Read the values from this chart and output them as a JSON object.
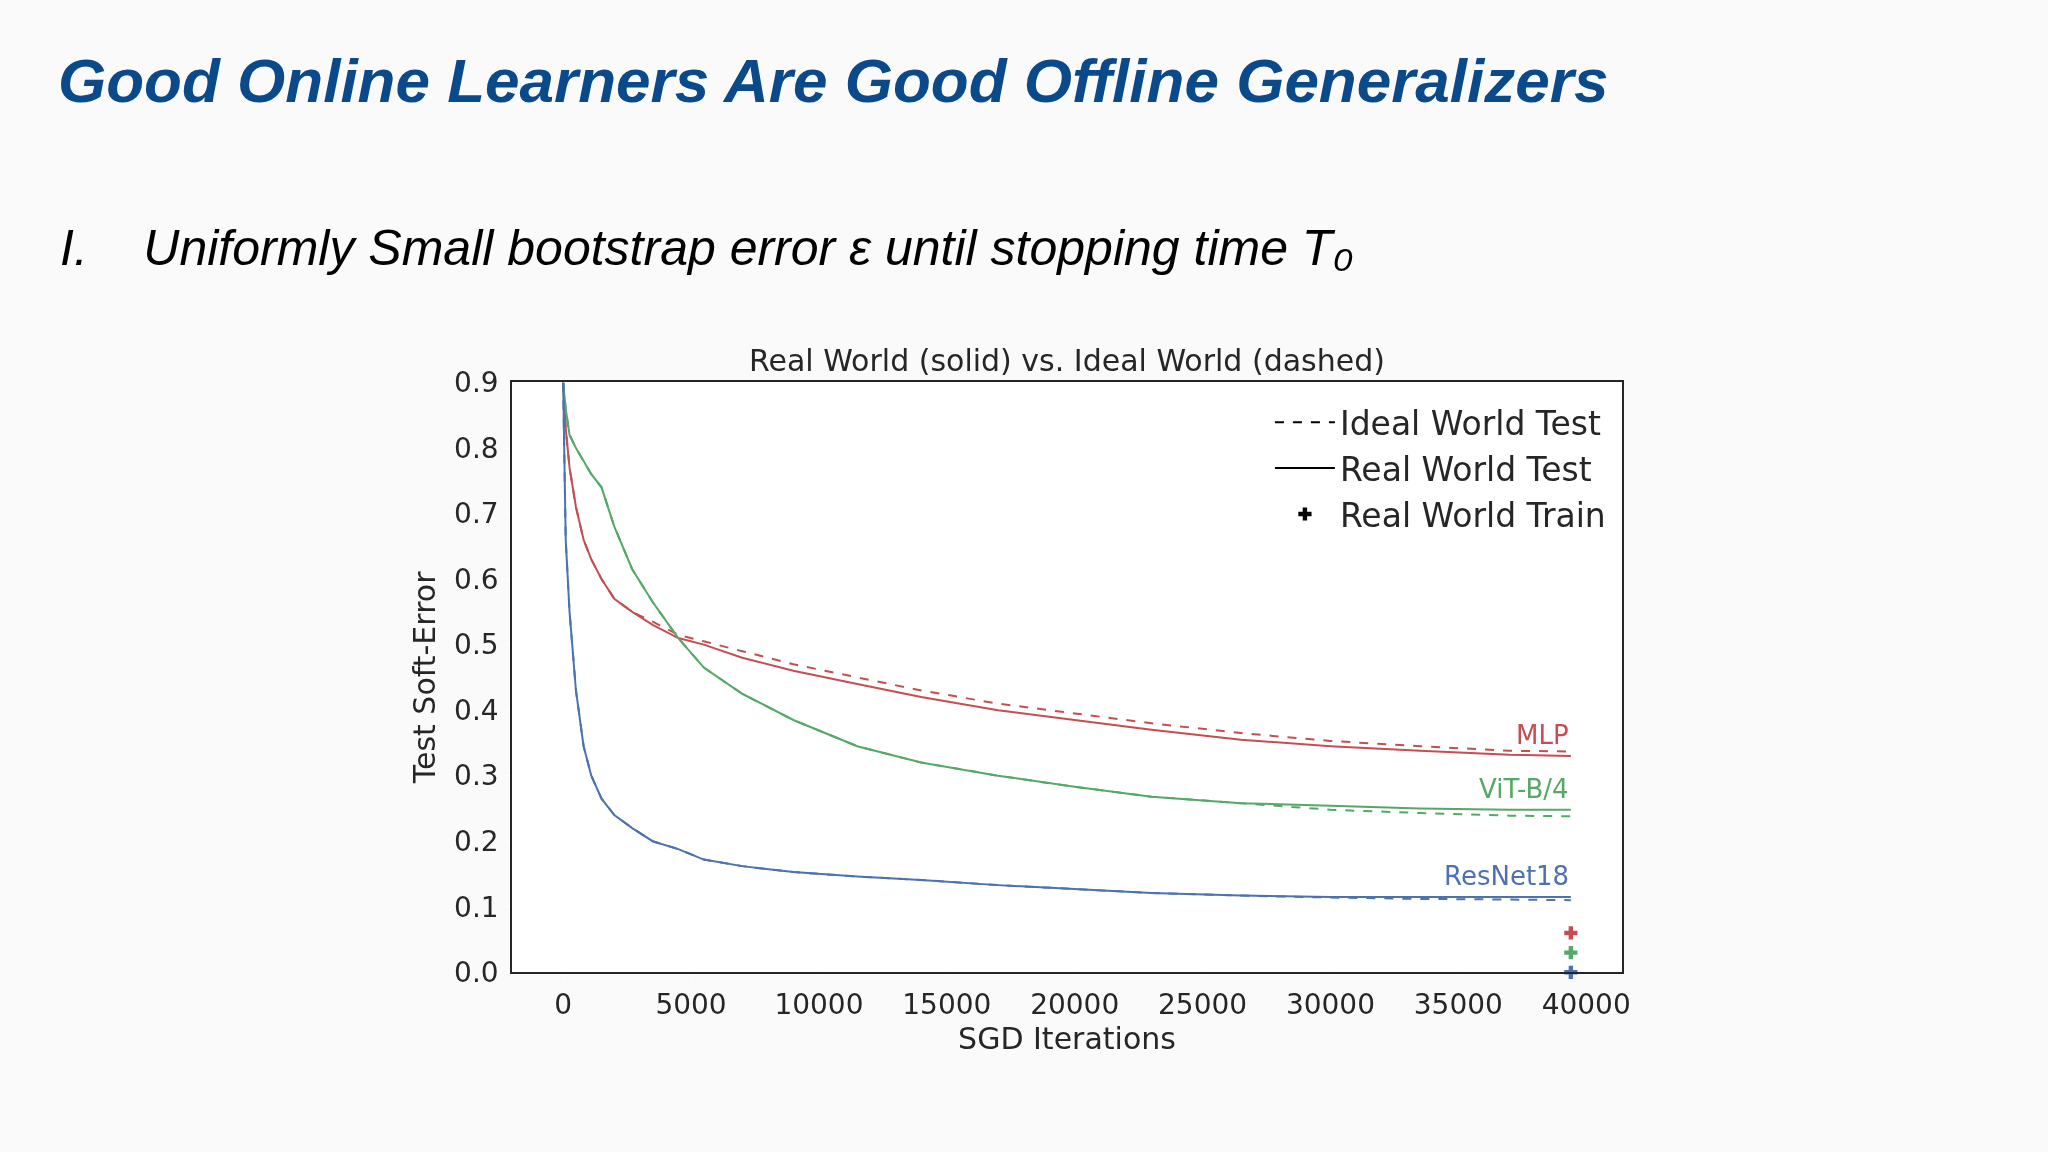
{
  "chart_data": {
    "type": "line",
    "title": "Good Online Learners Are Good Offline Generalizers",
    "subtitle": "I.    Uniformly Small bootstrap error ε until stopping time T₀",
    "xlabel": "SGD Iterations",
    "ylabel": "Test Soft-Error",
    "x": [
      0,
      100,
      250,
      500,
      800,
      1100,
      1500,
      2000,
      2700,
      3500,
      4500,
      5500,
      7000,
      9000,
      11500,
      14000,
      17000,
      20000,
      23000,
      26500,
      30000,
      33500,
      37000,
      39400
    ],
    "series": [
      {
        "color": "#c44e52",
        "line_style": "solid",
        "values": [
          0.9,
          0.83,
          0.77,
          0.71,
          0.66,
          0.63,
          0.6,
          0.57,
          0.55,
          0.53,
          0.51,
          0.5,
          0.48,
          0.46,
          0.44,
          0.42,
          0.4,
          0.385,
          0.37,
          0.355,
          0.345,
          0.338,
          0.332,
          0.33
        ]
      },
      {
        "color": "#c44e52",
        "line_style": "dashed",
        "values": [
          0.9,
          0.83,
          0.77,
          0.71,
          0.66,
          0.63,
          0.6,
          0.57,
          0.55,
          0.535,
          0.515,
          0.505,
          0.49,
          0.47,
          0.45,
          0.43,
          0.41,
          0.395,
          0.38,
          0.365,
          0.353,
          0.345,
          0.338,
          0.337
        ]
      },
      {
        "color": "#55a868",
        "line_style": "solid",
        "values": [
          0.9,
          0.86,
          0.82,
          0.8,
          0.78,
          0.76,
          0.74,
          0.68,
          0.615,
          0.565,
          0.51,
          0.465,
          0.425,
          0.385,
          0.345,
          0.32,
          0.3,
          0.283,
          0.268,
          0.258,
          0.254,
          0.25,
          0.248,
          0.248
        ]
      },
      {
        "color": "#55a868",
        "line_style": "dashed",
        "values": [
          0.9,
          0.86,
          0.82,
          0.8,
          0.78,
          0.76,
          0.74,
          0.68,
          0.615,
          0.565,
          0.51,
          0.465,
          0.425,
          0.385,
          0.345,
          0.32,
          0.3,
          0.283,
          0.268,
          0.258,
          0.248,
          0.243,
          0.239,
          0.238
        ]
      },
      {
        "color": "#4c72b0",
        "line_style": "solid",
        "values": [
          0.9,
          0.66,
          0.55,
          0.43,
          0.345,
          0.3,
          0.265,
          0.24,
          0.22,
          0.2,
          0.188,
          0.172,
          0.162,
          0.153,
          0.146,
          0.141,
          0.133,
          0.127,
          0.121,
          0.117,
          0.115,
          0.115,
          0.115,
          0.115
        ]
      },
      {
        "color": "#4c72b0",
        "line_style": "dashed",
        "values": [
          0.9,
          0.66,
          0.55,
          0.43,
          0.345,
          0.3,
          0.265,
          0.24,
          0.22,
          0.2,
          0.188,
          0.172,
          0.162,
          0.153,
          0.146,
          0.141,
          0.133,
          0.127,
          0.121,
          0.117,
          0.114,
          0.112,
          0.111,
          0.11
        ]
      },
      {
        "type": "scatter",
        "marker": "cross",
        "color": "#c44e52",
        "values": [
          null,
          null,
          null,
          null,
          null,
          null,
          null,
          null,
          null,
          null,
          null,
          null,
          null,
          null,
          null,
          null,
          null,
          null,
          null,
          null,
          null,
          null,
          null,
          0.06
        ]
      },
      {
        "type": "scatter",
        "marker": "cross",
        "color": "#55a868",
        "values": [
          null,
          null,
          null,
          null,
          null,
          null,
          null,
          null,
          null,
          null,
          null,
          null,
          null,
          null,
          null,
          null,
          null,
          null,
          null,
          null,
          null,
          null,
          null,
          0.03
        ]
      },
      {
        "type": "scatter",
        "marker": "cross",
        "color": "#4c72b0",
        "values": [
          null,
          null,
          null,
          null,
          null,
          null,
          null,
          null,
          null,
          null,
          null,
          null,
          null,
          null,
          null,
          null,
          null,
          null,
          null,
          null,
          null,
          null,
          null,
          0.0
        ]
      },
      {
        "name": "Ideal World Test",
        "color": "#000000",
        "line_style": "dashed",
        "x": [
          null
        ],
        "values": [
          null
        ]
      },
      {
        "name": "Real World Test",
        "color": "#000000",
        "line_style": "solid",
        "x": [
          null
        ],
        "values": [
          null
        ]
      },
      {
        "name": "Real World Train",
        "type": "scatter",
        "marker": "cross",
        "color": "#000000",
        "x": [
          null
        ],
        "values": [
          null
        ]
      }
    ],
    "annotations": [
      "Real World (solid) vs. Ideal World (dashed)",
      {
        "text": "MLP",
        "y": 0.33
      },
      {
        "text": "ViT-B/4",
        "y": 0.248
      },
      {
        "text": "ResNet18",
        "y": 0.115
      }
    ],
    "xlim": [
      -2000,
      41400
    ],
    "xticks": [
      0,
      5000,
      10000,
      15000,
      20000,
      25000,
      30000,
      35000,
      40000
    ],
    "ylim": [
      0,
      0.9
    ],
    "yticks": [
      {
        "value": 0,
        "label": "0.0"
      },
      0.1,
      0.2,
      0.3,
      0.4,
      0.5,
      0.6,
      0.7,
      0.8,
      0.9
    ],
    "grid": false,
    "legend": "top right"
  }
}
